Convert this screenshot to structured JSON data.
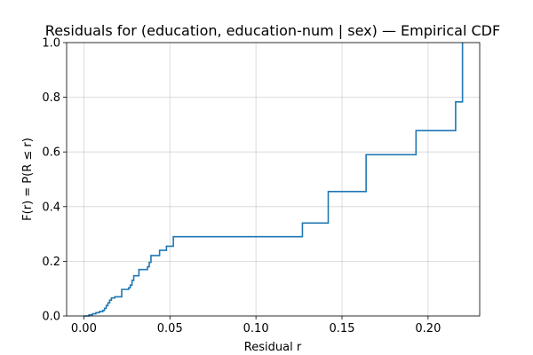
{
  "chart_data": {
    "type": "line",
    "step": true,
    "title": "Residuals for (education, education-num | sex) — Empirical CDF",
    "xlabel": "Residual r",
    "ylabel": "F(r) = P(R ≤ r)",
    "xlim": [
      -0.01,
      0.23
    ],
    "ylim": [
      0.0,
      1.0
    ],
    "xticks": [
      0.0,
      0.05,
      0.1,
      0.15,
      0.2
    ],
    "xtick_labels": [
      "0.00",
      "0.05",
      "0.10",
      "0.15",
      "0.20"
    ],
    "yticks": [
      0.0,
      0.2,
      0.4,
      0.6,
      0.8,
      1.0
    ],
    "ytick_labels": [
      "0.0",
      "0.2",
      "0.4",
      "0.6",
      "0.8",
      "1.0"
    ],
    "grid": true,
    "line_color": "#1f77b4",
    "series": [
      {
        "x": [
          0.0,
          0.003,
          0.005,
          0.007,
          0.009,
          0.011,
          0.012,
          0.013,
          0.014,
          0.015,
          0.016,
          0.018,
          0.022,
          0.026,
          0.027,
          0.028,
          0.029,
          0.032,
          0.037,
          0.038,
          0.039,
          0.044,
          0.048,
          0.052,
          0.127,
          0.142,
          0.164,
          0.193,
          0.216,
          0.22
        ],
        "y": [
          0.0,
          0.004,
          0.008,
          0.012,
          0.016,
          0.02,
          0.028,
          0.038,
          0.048,
          0.058,
          0.066,
          0.07,
          0.097,
          0.103,
          0.113,
          0.13,
          0.147,
          0.17,
          0.18,
          0.196,
          0.221,
          0.24,
          0.255,
          0.29,
          0.34,
          0.455,
          0.59,
          0.678,
          0.783,
          1.0
        ]
      }
    ]
  }
}
